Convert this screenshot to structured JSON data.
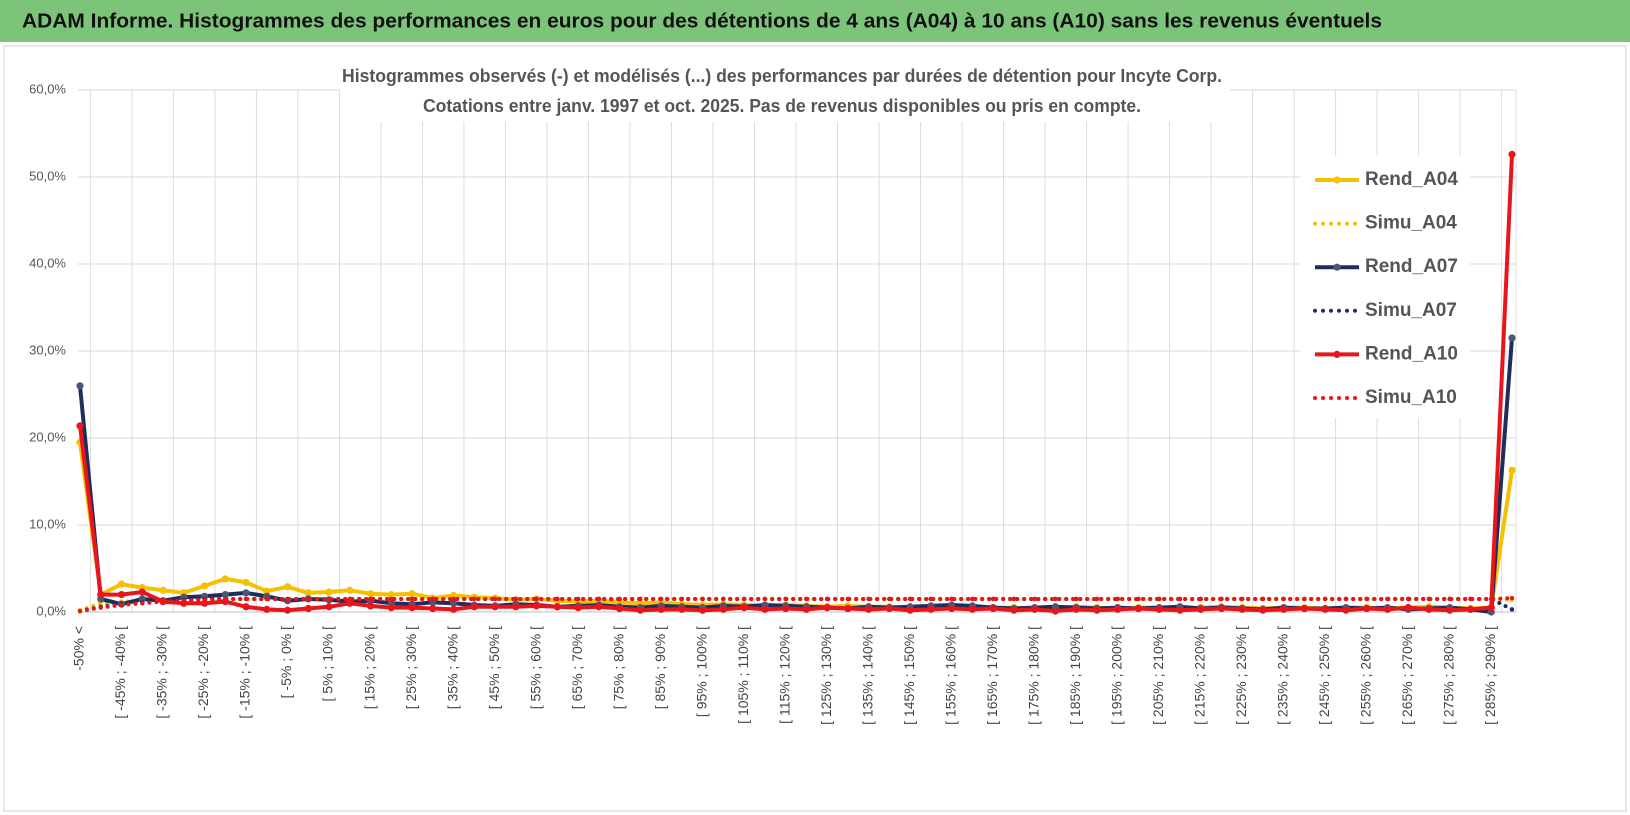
{
  "header": {
    "title": "ADAM Informe. Histogrammes des performances en euros pour des détentions de 4 ans (A04) à 10 ans (A10) sans les revenus éventuels"
  },
  "chart_data": {
    "type": "line",
    "title": "Histogrammes observés (-) et modélisés (...) des performances par durées de détention pour Incyte Corp.",
    "subtitle": "Cotations entre janv. 1997 et oct. 2025. Pas de revenus disponibles ou pris en compte.",
    "categories": [
      "-50% <",
      null,
      "[ -45% ; -40% [",
      null,
      "[ -35% ; -30% [",
      null,
      "[ -25% ; -20% [",
      null,
      "[ -15% ; -10% [",
      null,
      "[ -5% ; 0% [",
      null,
      "[ 5% ; 10% [",
      null,
      "[ 15% ; 20% [",
      null,
      "[ 25% ; 30% [",
      null,
      "[ 35% ; 40% [",
      null,
      "[ 45% ; 50% [",
      null,
      "[ 55% ; 60% [",
      null,
      "[ 65% ; 70% [",
      null,
      "[ 75% ; 80% [",
      null,
      "[ 85% ; 90% [",
      null,
      "[ 95% ; 100% [",
      null,
      "[ 105% ; 110% [",
      null,
      "[ 115% ; 120% [",
      null,
      "[ 125% ; 130% [",
      null,
      "[ 135% ; 140% [",
      null,
      "[ 145% ; 150% [",
      null,
      "[ 155% ; 160% [",
      null,
      "[ 165% ; 170% [",
      null,
      "[ 175% ; 180% [",
      null,
      "[ 185% ; 190% [",
      null,
      "[ 195% ; 200% [",
      null,
      "[ 205% ; 210% [",
      null,
      "[ 215% ; 220% [",
      null,
      "[ 225% ; 230% [",
      null,
      "[ 235% ; 240% [",
      null,
      "[ 245% ; 250% [",
      null,
      "[ 255% ; 260% [",
      null,
      "[ 265% ; 270% [",
      null,
      "[ 275% ; 280% [",
      null,
      "[ 285% ; 290% [",
      null
    ],
    "series": [
      {
        "name": "Rend_A04",
        "color": "#f5c000",
        "dotted": false,
        "values": [
          19.5,
          2.0,
          3.2,
          2.8,
          2.5,
          2.2,
          3.0,
          3.8,
          3.4,
          2.4,
          2.9,
          2.2,
          2.3,
          2.5,
          2.1,
          2.0,
          2.1,
          1.6,
          1.9,
          1.7,
          1.6,
          1.4,
          1.5,
          1.3,
          1.2,
          1.3,
          1.1,
          1.0,
          1.1,
          0.9,
          0.8,
          0.9,
          0.8,
          0.7,
          0.8,
          0.7,
          0.6,
          0.7,
          0.6,
          0.6,
          0.5,
          0.6,
          0.5,
          0.6,
          0.5,
          0.5,
          0.4,
          0.5,
          0.6,
          0.5,
          0.4,
          0.5,
          0.5,
          0.4,
          0.5,
          0.6,
          0.5,
          0.4,
          0.5,
          0.5,
          0.4,
          0.5,
          0.5,
          0.4,
          0.5,
          0.6,
          0.5,
          0.4,
          0.5,
          16.3
        ]
      },
      {
        "name": "Simu_A04",
        "color": "#f5c000",
        "dotted": true,
        "values": [
          0.2,
          1.0,
          1.2,
          1.3,
          1.4,
          1.4,
          1.5,
          1.5,
          1.5,
          1.5,
          1.5,
          1.5,
          1.5,
          1.5,
          1.5,
          1.5,
          1.5,
          1.5,
          1.5,
          1.5,
          1.5,
          1.5,
          1.5,
          1.5,
          1.5,
          1.5,
          1.5,
          1.5,
          1.5,
          1.5,
          1.5,
          1.5,
          1.5,
          1.5,
          1.5,
          1.5,
          1.5,
          1.5,
          1.5,
          1.5,
          1.5,
          1.5,
          1.5,
          1.5,
          1.5,
          1.5,
          1.5,
          1.5,
          1.5,
          1.5,
          1.5,
          1.5,
          1.5,
          1.5,
          1.5,
          1.5,
          1.5,
          1.5,
          1.5,
          1.5,
          1.5,
          1.5,
          1.5,
          1.5,
          1.5,
          1.5,
          1.5,
          1.5,
          1.5,
          1.4
        ]
      },
      {
        "name": "Rend_A07",
        "color": "#1f2d5c",
        "dotted": false,
        "values": [
          26.0,
          1.5,
          0.9,
          1.5,
          1.3,
          1.7,
          1.8,
          2.0,
          2.2,
          1.8,
          1.3,
          1.5,
          1.4,
          1.2,
          1.3,
          1.0,
          0.9,
          1.1,
          1.0,
          0.8,
          0.7,
          0.9,
          0.8,
          0.6,
          0.7,
          0.8,
          0.6,
          0.5,
          0.7,
          0.6,
          0.5,
          0.7,
          0.6,
          0.8,
          0.7,
          0.6,
          0.5,
          0.4,
          0.6,
          0.5,
          0.6,
          0.7,
          0.8,
          0.7,
          0.5,
          0.4,
          0.5,
          0.6,
          0.5,
          0.4,
          0.5,
          0.4,
          0.5,
          0.6,
          0.4,
          0.5,
          0.4,
          0.3,
          0.5,
          0.4,
          0.4,
          0.5,
          0.4,
          0.5,
          0.3,
          0.4,
          0.5,
          0.3,
          0.0,
          31.5
        ]
      },
      {
        "name": "Simu_A07",
        "color": "#1f2d5c",
        "dotted": true,
        "values": [
          0.1,
          0.6,
          0.9,
          1.1,
          1.3,
          1.4,
          1.5,
          1.5,
          1.5,
          1.5,
          1.5,
          1.5,
          1.5,
          1.5,
          1.5,
          1.5,
          1.5,
          1.5,
          1.5,
          1.5,
          1.5,
          1.5,
          1.5,
          1.5,
          1.5,
          1.5,
          1.5,
          1.5,
          1.5,
          1.5,
          1.5,
          1.5,
          1.5,
          1.5,
          1.5,
          1.5,
          1.5,
          1.5,
          1.5,
          1.5,
          1.5,
          1.5,
          1.5,
          1.5,
          1.5,
          1.5,
          1.5,
          1.5,
          1.5,
          1.5,
          1.5,
          1.5,
          1.5,
          1.5,
          1.5,
          1.5,
          1.5,
          1.5,
          1.5,
          1.5,
          1.5,
          1.5,
          1.5,
          1.5,
          1.5,
          1.5,
          1.5,
          1.5,
          1.5,
          0.3
        ]
      },
      {
        "name": "Rend_A10",
        "color": "#e8161b",
        "dotted": false,
        "values": [
          21.4,
          2.0,
          2.0,
          2.3,
          1.2,
          1.0,
          1.0,
          1.2,
          0.6,
          0.3,
          0.2,
          0.4,
          0.6,
          1.0,
          0.7,
          0.5,
          0.5,
          0.4,
          0.3,
          0.6,
          0.6,
          0.6,
          0.7,
          0.6,
          0.5,
          0.6,
          0.4,
          0.2,
          0.3,
          0.3,
          0.2,
          0.3,
          0.5,
          0.3,
          0.4,
          0.3,
          0.5,
          0.4,
          0.3,
          0.4,
          0.2,
          0.3,
          0.4,
          0.3,
          0.4,
          0.2,
          0.3,
          0.1,
          0.3,
          0.2,
          0.3,
          0.4,
          0.3,
          0.2,
          0.3,
          0.4,
          0.3,
          0.2,
          0.3,
          0.4,
          0.3,
          0.2,
          0.4,
          0.3,
          0.5,
          0.3,
          0.2,
          0.3,
          0.5,
          52.6
        ]
      },
      {
        "name": "Simu_A10",
        "color": "#e8161b",
        "dotted": true,
        "values": [
          0.1,
          0.5,
          0.8,
          1.0,
          1.2,
          1.3,
          1.4,
          1.5,
          1.5,
          1.5,
          1.5,
          1.5,
          1.5,
          1.5,
          1.5,
          1.5,
          1.5,
          1.5,
          1.5,
          1.5,
          1.5,
          1.5,
          1.5,
          1.5,
          1.5,
          1.5,
          1.5,
          1.5,
          1.5,
          1.5,
          1.5,
          1.5,
          1.5,
          1.5,
          1.5,
          1.5,
          1.5,
          1.5,
          1.5,
          1.5,
          1.5,
          1.5,
          1.5,
          1.5,
          1.5,
          1.5,
          1.5,
          1.5,
          1.5,
          1.5,
          1.5,
          1.5,
          1.5,
          1.5,
          1.5,
          1.5,
          1.5,
          1.5,
          1.5,
          1.5,
          1.5,
          1.5,
          1.5,
          1.5,
          1.5,
          1.5,
          1.5,
          1.5,
          1.5,
          1.6
        ]
      }
    ],
    "ylim": [
      0,
      60
    ],
    "yticks": [
      {
        "value": 0,
        "label": "0,0%"
      },
      {
        "value": 10,
        "label": "10,0%"
      },
      {
        "value": 20,
        "label": "20,0%"
      },
      {
        "value": 30,
        "label": "30,0%"
      },
      {
        "value": 40,
        "label": "40,0%"
      },
      {
        "value": 50,
        "label": "50,0%"
      },
      {
        "value": 60,
        "label": "60,0%"
      }
    ],
    "grid": true,
    "legend": "right"
  }
}
